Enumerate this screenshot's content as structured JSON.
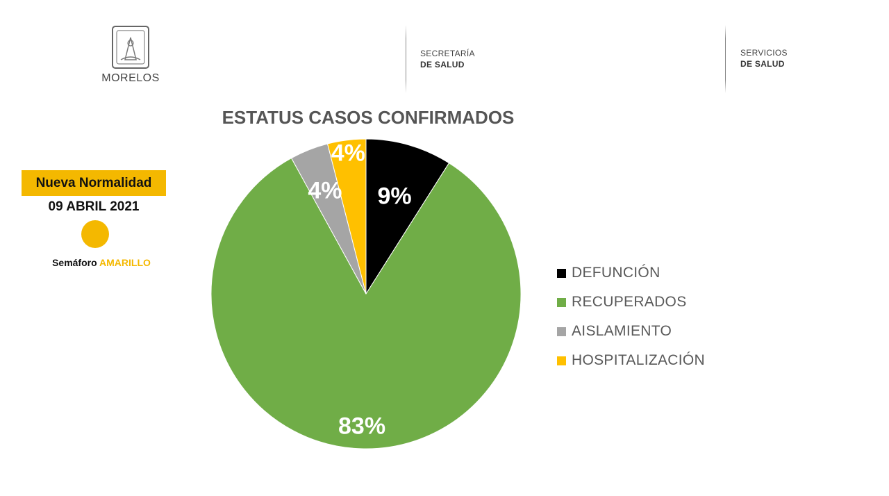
{
  "header": {
    "state_name": "MORELOS",
    "agency_1": {
      "line1": "SECRETARÍA",
      "line2": "DE SALUD"
    },
    "agency_2": {
      "line1": "SERVICIOS",
      "line2": "DE SALUD"
    }
  },
  "status_panel": {
    "badge": "Nueva Normalidad",
    "date": "09 ABRIL 2021",
    "semaforo_label": "Semáforo",
    "semaforo_value": "AMARILLO",
    "semaforo_color": "#F4B800"
  },
  "chart_data": {
    "type": "pie",
    "title": "ESTATUS CASOS CONFIRMADOS",
    "categories": [
      "DEFUNCIÓN",
      "RECUPERADOS",
      "AISLAMIENTO",
      "HOSPITALIZACIÓN"
    ],
    "values": [
      9,
      83,
      4,
      4
    ],
    "labels": [
      "9%",
      "83%",
      "4%",
      "4%"
    ],
    "colors": [
      "#000000",
      "#70AD47",
      "#A5A5A5",
      "#FFC000"
    ],
    "legend_position": "right"
  }
}
